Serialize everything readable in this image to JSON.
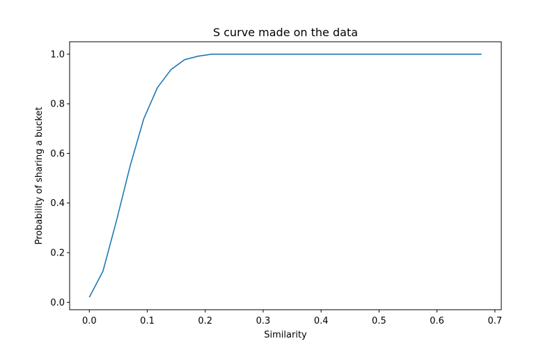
{
  "chart_data": {
    "type": "line",
    "title": "S curve made on the data",
    "xlabel": "Similarity",
    "ylabel": "Probability of sharing a bucket",
    "xlim": [
      -0.034,
      0.711
    ],
    "ylim": [
      -0.03,
      1.05
    ],
    "xticks": [
      0.0,
      0.1,
      0.2,
      0.3,
      0.4,
      0.5,
      0.6,
      0.7
    ],
    "xtick_labels": [
      "0.0",
      "0.1",
      "0.2",
      "0.3",
      "0.4",
      "0.5",
      "0.6",
      "0.7"
    ],
    "yticks": [
      0.0,
      0.2,
      0.4,
      0.6,
      0.8,
      1.0
    ],
    "ytick_labels": [
      "0.0",
      "0.2",
      "0.4",
      "0.6",
      "0.8",
      "1.0"
    ],
    "grid": false,
    "series": [
      {
        "color": "#1f77b4",
        "x": [
          0.0,
          0.0235,
          0.047,
          0.0705,
          0.094,
          0.1175,
          0.141,
          0.1645,
          0.188,
          0.2115,
          0.235,
          0.258,
          0.282,
          0.305,
          0.329,
          0.352,
          0.376,
          0.399,
          0.423,
          0.446,
          0.47,
          0.493,
          0.517,
          0.54,
          0.564,
          0.587,
          0.611,
          0.634,
          0.658,
          0.677
        ],
        "y": [
          0.02,
          0.125,
          0.33,
          0.55,
          0.74,
          0.865,
          0.938,
          0.978,
          0.992,
          1.0,
          1.0,
          1.0,
          1.0,
          1.0,
          1.0,
          1.0,
          1.0,
          1.0,
          1.0,
          1.0,
          1.0,
          1.0,
          1.0,
          1.0,
          1.0,
          1.0,
          1.0,
          1.0,
          1.0,
          1.0
        ]
      }
    ]
  }
}
